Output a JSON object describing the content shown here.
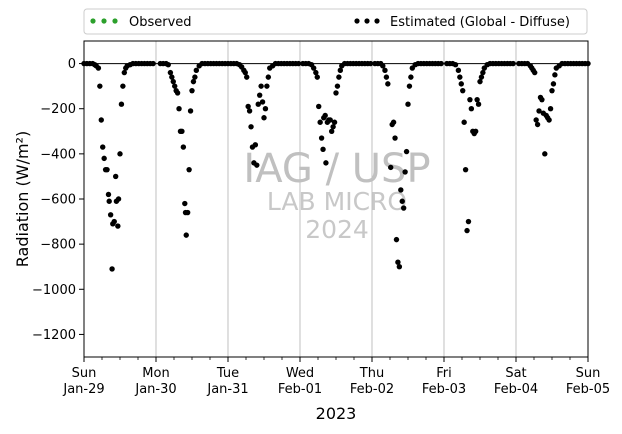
{
  "chart_data": {
    "type": "scatter",
    "xlabel": "2023",
    "ylabel": "Radiation (W/m²)",
    "ylim": [
      -1300,
      100
    ],
    "yticks": [
      0,
      -200,
      -400,
      -600,
      -800,
      -1000,
      -1200
    ],
    "xlim": [
      0,
      7
    ],
    "xticks": [
      {
        "x": 0,
        "line1": "Sun",
        "line2": "Jan-29"
      },
      {
        "x": 1,
        "line1": "Mon",
        "line2": "Jan-30"
      },
      {
        "x": 2,
        "line1": "Tue",
        "line2": "Jan-31"
      },
      {
        "x": 3,
        "line1": "Wed",
        "line2": "Feb-01"
      },
      {
        "x": 4,
        "line1": "Thu",
        "line2": "Feb-02"
      },
      {
        "x": 5,
        "line1": "Fri",
        "line2": "Feb-03"
      },
      {
        "x": 6,
        "line1": "Sat",
        "line2": "Feb-04"
      },
      {
        "x": 7,
        "line1": "Sun",
        "line2": "Feb-05"
      }
    ],
    "grid": "vertical",
    "reference_line": 0,
    "legend_position": "top",
    "watermark": [
      "IAG / USP",
      "LAB MICRO",
      "2024"
    ],
    "series": [
      {
        "name": "Observed",
        "color": "#2ca02c",
        "values": []
      },
      {
        "name": "Estimated (Global - Diffuse)",
        "color": "#000000",
        "points": [
          [
            0.0,
            0
          ],
          [
            0.04,
            0
          ],
          [
            0.08,
            0
          ],
          [
            0.12,
            0
          ],
          [
            0.15,
            -5
          ],
          [
            0.17,
            -10
          ],
          [
            0.2,
            -20
          ],
          [
            0.22,
            -100
          ],
          [
            0.24,
            -250
          ],
          [
            0.26,
            -370
          ],
          [
            0.28,
            -420
          ],
          [
            0.3,
            -470
          ],
          [
            0.32,
            -470
          ],
          [
            0.34,
            -580
          ],
          [
            0.35,
            -610
          ],
          [
            0.37,
            -670
          ],
          [
            0.39,
            -910
          ],
          [
            0.4,
            -710
          ],
          [
            0.42,
            -700
          ],
          [
            0.44,
            -500
          ],
          [
            0.45,
            -610
          ],
          [
            0.47,
            -720
          ],
          [
            0.48,
            -600
          ],
          [
            0.5,
            -400
          ],
          [
            0.52,
            -180
          ],
          [
            0.54,
            -100
          ],
          [
            0.56,
            -40
          ],
          [
            0.58,
            -20
          ],
          [
            0.6,
            -10
          ],
          [
            0.64,
            -5
          ],
          [
            0.68,
            0
          ],
          [
            0.72,
            0
          ],
          [
            0.76,
            0
          ],
          [
            0.8,
            0
          ],
          [
            0.84,
            0
          ],
          [
            0.88,
            0
          ],
          [
            0.92,
            0
          ],
          [
            0.96,
            0
          ],
          [
            1.06,
            0
          ],
          [
            1.1,
            0
          ],
          [
            1.14,
            0
          ],
          [
            1.17,
            -5
          ],
          [
            1.2,
            -40
          ],
          [
            1.22,
            -60
          ],
          [
            1.24,
            -80
          ],
          [
            1.26,
            -100
          ],
          [
            1.28,
            -120
          ],
          [
            1.3,
            -130
          ],
          [
            1.32,
            -200
          ],
          [
            1.34,
            -300
          ],
          [
            1.36,
            -300
          ],
          [
            1.38,
            -370
          ],
          [
            1.4,
            -620
          ],
          [
            1.41,
            -660
          ],
          [
            1.42,
            -760
          ],
          [
            1.44,
            -660
          ],
          [
            1.46,
            -470
          ],
          [
            1.48,
            -210
          ],
          [
            1.5,
            -120
          ],
          [
            1.52,
            -80
          ],
          [
            1.54,
            -60
          ],
          [
            1.56,
            -30
          ],
          [
            1.6,
            -10
          ],
          [
            1.64,
            0
          ],
          [
            1.68,
            0
          ],
          [
            1.72,
            0
          ],
          [
            1.76,
            0
          ],
          [
            1.8,
            0
          ],
          [
            1.84,
            0
          ],
          [
            1.88,
            0
          ],
          [
            1.92,
            0
          ],
          [
            1.96,
            0
          ],
          [
            2.0,
            0
          ],
          [
            2.04,
            0
          ],
          [
            2.08,
            0
          ],
          [
            2.12,
            0
          ],
          [
            2.16,
            -5
          ],
          [
            2.19,
            -15
          ],
          [
            2.22,
            -30
          ],
          [
            2.24,
            -40
          ],
          [
            2.26,
            -60
          ],
          [
            2.28,
            -190
          ],
          [
            2.3,
            -210
          ],
          [
            2.32,
            -280
          ],
          [
            2.34,
            -370
          ],
          [
            2.36,
            -440
          ],
          [
            2.38,
            -360
          ],
          [
            2.4,
            -450
          ],
          [
            2.42,
            -180
          ],
          [
            2.44,
            -140
          ],
          [
            2.46,
            -100
          ],
          [
            2.48,
            -170
          ],
          [
            2.5,
            -240
          ],
          [
            2.52,
            -200
          ],
          [
            2.54,
            -100
          ],
          [
            2.56,
            -60
          ],
          [
            2.58,
            -20
          ],
          [
            2.62,
            -10
          ],
          [
            2.66,
            0
          ],
          [
            2.7,
            0
          ],
          [
            2.74,
            0
          ],
          [
            2.78,
            0
          ],
          [
            2.82,
            0
          ],
          [
            2.86,
            0
          ],
          [
            2.9,
            0
          ],
          [
            2.94,
            0
          ],
          [
            2.98,
            0
          ],
          [
            3.04,
            0
          ],
          [
            3.08,
            0
          ],
          [
            3.12,
            0
          ],
          [
            3.16,
            -5
          ],
          [
            3.19,
            -20
          ],
          [
            3.22,
            -40
          ],
          [
            3.24,
            -60
          ],
          [
            3.26,
            -190
          ],
          [
            3.28,
            -260
          ],
          [
            3.3,
            -330
          ],
          [
            3.32,
            -380
          ],
          [
            3.33,
            -240
          ],
          [
            3.35,
            -230
          ],
          [
            3.36,
            -440
          ],
          [
            3.38,
            -260
          ],
          [
            3.4,
            -250
          ],
          [
            3.42,
            -250
          ],
          [
            3.44,
            -300
          ],
          [
            3.46,
            -280
          ],
          [
            3.48,
            -260
          ],
          [
            3.5,
            -130
          ],
          [
            3.52,
            -100
          ],
          [
            3.54,
            -60
          ],
          [
            3.56,
            -30
          ],
          [
            3.58,
            -10
          ],
          [
            3.62,
            0
          ],
          [
            3.66,
            0
          ],
          [
            3.7,
            0
          ],
          [
            3.74,
            0
          ],
          [
            3.78,
            0
          ],
          [
            3.82,
            0
          ],
          [
            3.86,
            0
          ],
          [
            3.9,
            0
          ],
          [
            3.94,
            0
          ],
          [
            3.98,
            0
          ],
          [
            4.04,
            0
          ],
          [
            4.08,
            0
          ],
          [
            4.12,
            0
          ],
          [
            4.15,
            -10
          ],
          [
            4.18,
            -30
          ],
          [
            4.2,
            -60
          ],
          [
            4.22,
            -90
          ],
          [
            4.26,
            -460
          ],
          [
            4.28,
            -270
          ],
          [
            4.3,
            -260
          ],
          [
            4.32,
            -330
          ],
          [
            4.34,
            -780
          ],
          [
            4.36,
            -880
          ],
          [
            4.38,
            -900
          ],
          [
            4.4,
            -560
          ],
          [
            4.42,
            -610
          ],
          [
            4.44,
            -640
          ],
          [
            4.46,
            -480
          ],
          [
            4.48,
            -390
          ],
          [
            4.5,
            -180
          ],
          [
            4.52,
            -100
          ],
          [
            4.54,
            -60
          ],
          [
            4.56,
            -20
          ],
          [
            4.6,
            -5
          ],
          [
            4.64,
            0
          ],
          [
            4.68,
            0
          ],
          [
            4.72,
            0
          ],
          [
            4.76,
            0
          ],
          [
            4.8,
            0
          ],
          [
            4.84,
            0
          ],
          [
            4.88,
            0
          ],
          [
            4.92,
            0
          ],
          [
            4.96,
            0
          ],
          [
            5.04,
            0
          ],
          [
            5.08,
            0
          ],
          [
            5.12,
            0
          ],
          [
            5.16,
            -5
          ],
          [
            5.2,
            -30
          ],
          [
            5.22,
            -60
          ],
          [
            5.24,
            -90
          ],
          [
            5.26,
            -120
          ],
          [
            5.28,
            -260
          ],
          [
            5.3,
            -470
          ],
          [
            5.32,
            -740
          ],
          [
            5.34,
            -700
          ],
          [
            5.36,
            -160
          ],
          [
            5.38,
            -200
          ],
          [
            5.4,
            -300
          ],
          [
            5.42,
            -310
          ],
          [
            5.44,
            -300
          ],
          [
            5.46,
            -160
          ],
          [
            5.48,
            -180
          ],
          [
            5.5,
            -80
          ],
          [
            5.52,
            -60
          ],
          [
            5.54,
            -40
          ],
          [
            5.56,
            -20
          ],
          [
            5.6,
            -5
          ],
          [
            5.64,
            0
          ],
          [
            5.68,
            0
          ],
          [
            5.72,
            0
          ],
          [
            5.76,
            0
          ],
          [
            5.8,
            0
          ],
          [
            5.84,
            0
          ],
          [
            5.88,
            0
          ],
          [
            5.92,
            0
          ],
          [
            5.96,
            0
          ],
          [
            6.04,
            0
          ],
          [
            6.08,
            0
          ],
          [
            6.12,
            0
          ],
          [
            6.16,
            0
          ],
          [
            6.2,
            -10
          ],
          [
            6.22,
            -20
          ],
          [
            6.24,
            -30
          ],
          [
            6.26,
            -40
          ],
          [
            6.28,
            -250
          ],
          [
            6.3,
            -270
          ],
          [
            6.32,
            -210
          ],
          [
            6.34,
            -150
          ],
          [
            6.36,
            -160
          ],
          [
            6.38,
            -220
          ],
          [
            6.4,
            -400
          ],
          [
            6.42,
            -230
          ],
          [
            6.44,
            -240
          ],
          [
            6.46,
            -250
          ],
          [
            6.48,
            -200
          ],
          [
            6.5,
            -120
          ],
          [
            6.52,
            -90
          ],
          [
            6.54,
            -50
          ],
          [
            6.56,
            -20
          ],
          [
            6.6,
            -10
          ],
          [
            6.64,
            0
          ],
          [
            6.68,
            0
          ],
          [
            6.72,
            0
          ],
          [
            6.76,
            0
          ],
          [
            6.8,
            0
          ],
          [
            6.84,
            0
          ],
          [
            6.88,
            0
          ],
          [
            6.92,
            0
          ],
          [
            6.96,
            0
          ],
          [
            7.0,
            0
          ]
        ]
      }
    ]
  }
}
